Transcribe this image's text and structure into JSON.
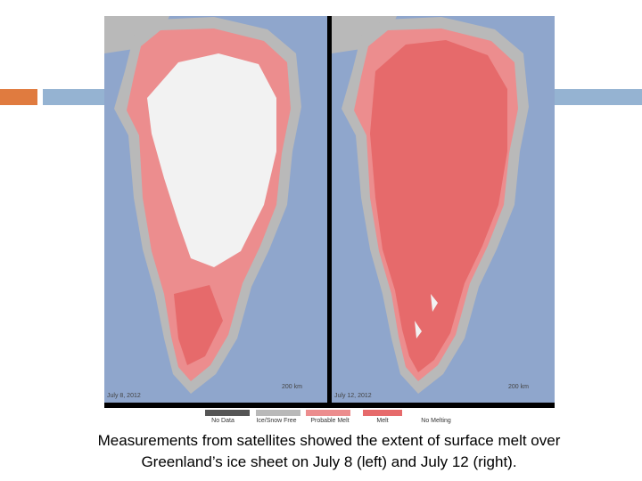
{
  "panels": [
    {
      "date": "July 8, 2012",
      "scale": "200 km"
    },
    {
      "date": "July 12, 2012",
      "scale": "200 km"
    }
  ],
  "legend": [
    "No Data",
    "Ice/Snow Free",
    "Probable Melt",
    "Melt",
    "No Melting"
  ],
  "caption": [
    "Measurements from satellites showed the extent of surface melt over",
    "Greenland’s ice sheet on July 8 (left) and July 12 (right)."
  ]
}
